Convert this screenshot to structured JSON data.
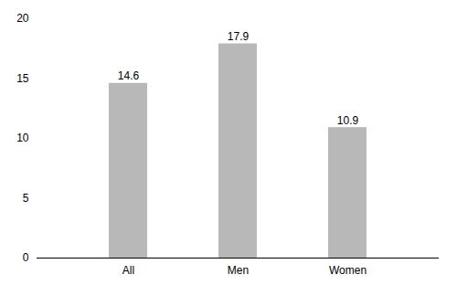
{
  "chart_data": {
    "type": "bar",
    "categories": [
      "All",
      "Men",
      "Women"
    ],
    "values": [
      14.6,
      17.9,
      10.9
    ],
    "color": "#b8b8b8",
    "ylim": [
      0,
      20
    ],
    "yticks": [
      0,
      5,
      10,
      15,
      20
    ],
    "grid": false,
    "data_labels": true
  }
}
